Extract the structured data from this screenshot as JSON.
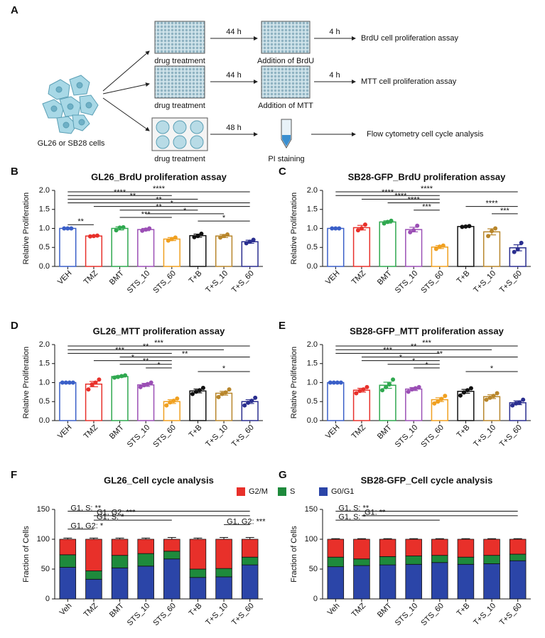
{
  "panel_a": {
    "label": "A",
    "cells_label": "GL26 or SB28 cells",
    "rows": [
      {
        "treatment": "drug treatment",
        "time1": "44 h",
        "step": "Addition of BrdU",
        "time2": "4 h",
        "assay": "BrdU cell proliferation assay"
      },
      {
        "treatment": "drug treatment",
        "time1": "44 h",
        "step": "Addition of MTT",
        "time2": "4 h",
        "assay": "MTT cell proliferation assay"
      },
      {
        "treatment": "drug treatment",
        "time1": "48 h",
        "step": "PI staining",
        "assay": "Flow cytometry cell cycle analysis"
      }
    ]
  },
  "chart_data": [
    {
      "type": "bar",
      "panel": "B",
      "title": "GL26_BrdU proliferation assay",
      "y_label": "Relative Proliferation",
      "categories": [
        "VEH",
        "TMZ",
        "BMT",
        "STS_10",
        "STS_60",
        "T+B",
        "T+S_10",
        "T+S_60"
      ],
      "colors": [
        "#3a5fc8",
        "#e8302a",
        "#2fa84f",
        "#9b4fb5",
        "#f0a020",
        "#111111",
        "#b8862b",
        "#2a2e8f"
      ],
      "values": [
        1.0,
        0.8,
        1.0,
        0.97,
        0.72,
        0.81,
        0.8,
        0.65
      ],
      "errors": [
        0.01,
        0.01,
        0.04,
        0.03,
        0.04,
        0.04,
        0.04,
        0.04
      ],
      "points": [
        [
          1.0,
          1.0,
          1.0
        ],
        [
          0.79,
          0.8,
          0.81
        ],
        [
          0.95,
          1.02,
          1.03
        ],
        [
          0.94,
          0.97,
          1.0
        ],
        [
          0.68,
          0.72,
          0.76
        ],
        [
          0.77,
          0.8,
          0.86
        ],
        [
          0.76,
          0.8,
          0.84
        ],
        [
          0.61,
          0.65,
          0.7
        ]
      ],
      "ylim": [
        0,
        2
      ],
      "yticks": [
        {
          "value": 0,
          "label": "0.0"
        },
        0.5,
        {
          "value": 1,
          "label": "1.0"
        },
        1.5,
        {
          "value": 2,
          "label": "2.0"
        }
      ],
      "significance": [
        {
          "from": 0,
          "to": 7,
          "label": "****"
        },
        {
          "from": 0,
          "to": 4,
          "label": "****"
        },
        {
          "from": 0,
          "to": 5,
          "label": "**"
        },
        {
          "from": 0,
          "to": 7,
          "label": "**"
        },
        {
          "from": 1,
          "to": 7,
          "label": "*"
        },
        {
          "from": 2,
          "to": 5,
          "label": "**"
        },
        {
          "from": 3,
          "to": 6,
          "label": "*"
        },
        {
          "from": 2,
          "to": 4,
          "label": "***"
        },
        {
          "from": 5,
          "to": 7,
          "label": "*"
        },
        {
          "from": 0,
          "to": 1,
          "label": "**"
        }
      ]
    },
    {
      "type": "bar",
      "panel": "C",
      "title": "SB28-GFP_BrdU proliferation assay",
      "y_label": "Relative Proliferation",
      "categories": [
        "VEH",
        "TMZ",
        "BMT",
        "STS_10",
        "STS_60",
        "T+B",
        "T+S_10",
        "T+S_60"
      ],
      "colors": [
        "#3a5fc8",
        "#e8302a",
        "#2fa84f",
        "#9b4fb5",
        "#f0a020",
        "#111111",
        "#b8862b",
        "#2a2e8f"
      ],
      "values": [
        1.0,
        1.02,
        1.17,
        0.97,
        0.51,
        1.05,
        0.91,
        0.49
      ],
      "errors": [
        0.005,
        0.06,
        0.03,
        0.06,
        0.04,
        0.01,
        0.08,
        0.08
      ],
      "points": [
        [
          1.0,
          1.0,
          1.0
        ],
        [
          0.95,
          1.0,
          1.1
        ],
        [
          1.13,
          1.17,
          1.2
        ],
        [
          0.9,
          0.95,
          1.07
        ],
        [
          0.46,
          0.52,
          0.55
        ],
        [
          1.04,
          1.05,
          1.06
        ],
        [
          0.8,
          0.93,
          1.0
        ],
        [
          0.38,
          0.45,
          0.62
        ]
      ],
      "ylim": [
        0,
        2
      ],
      "yticks": [
        {
          "value": 0,
          "label": "0.0"
        },
        0.5,
        {
          "value": 1,
          "label": "1.0"
        },
        1.5,
        {
          "value": 2,
          "label": "2.0"
        }
      ],
      "significance": [
        {
          "from": 0,
          "to": 7,
          "label": "****"
        },
        {
          "from": 0,
          "to": 4,
          "label": "****"
        },
        {
          "from": 1,
          "to": 4,
          "label": "****"
        },
        {
          "from": 2,
          "to": 4,
          "label": "****"
        },
        {
          "from": 5,
          "to": 7,
          "label": "****"
        },
        {
          "from": 3,
          "to": 4,
          "label": "***"
        },
        {
          "from": 6,
          "to": 7,
          "label": "***"
        }
      ]
    },
    {
      "type": "bar",
      "panel": "D",
      "title": "GL26_MTT proliferation assay",
      "y_label": "Relative Proliferation",
      "categories": [
        "VEH",
        "TMZ",
        "BMT",
        "STS_10",
        "STS_60",
        "T+B",
        "T+S_10",
        "T+S_60"
      ],
      "colors": [
        "#3a5fc8",
        "#e8302a",
        "#2fa84f",
        "#9b4fb5",
        "#f0a020",
        "#111111",
        "#b8862b",
        "#2a2e8f"
      ],
      "values": [
        1.0,
        0.96,
        1.16,
        0.94,
        0.5,
        0.78,
        0.72,
        0.5
      ],
      "errors": [
        0.005,
        0.07,
        0.02,
        0.04,
        0.05,
        0.05,
        0.05,
        0.05
      ],
      "points": [
        [
          1.0,
          1.0,
          1.0,
          1.0
        ],
        [
          0.82,
          0.95,
          1.0,
          1.08
        ],
        [
          1.13,
          1.15,
          1.17,
          1.19
        ],
        [
          0.88,
          0.93,
          0.96,
          1.0
        ],
        [
          0.4,
          0.48,
          0.52,
          0.58
        ],
        [
          0.7,
          0.76,
          0.8,
          0.86
        ],
        [
          0.62,
          0.7,
          0.74,
          0.82
        ],
        [
          0.4,
          0.47,
          0.52,
          0.6
        ]
      ],
      "ylim": [
        0,
        2
      ],
      "yticks": [
        {
          "value": 0,
          "label": "0.0"
        },
        0.5,
        {
          "value": 1,
          "label": "1.0"
        },
        1.5,
        {
          "value": 2,
          "label": "2.0"
        }
      ],
      "significance": [
        {
          "from": 0,
          "to": 7,
          "label": "***"
        },
        {
          "from": 0,
          "to": 6,
          "label": "**"
        },
        {
          "from": 0,
          "to": 4,
          "label": "***"
        },
        {
          "from": 2,
          "to": 7,
          "label": "**"
        },
        {
          "from": 1,
          "to": 4,
          "label": "*"
        },
        {
          "from": 2,
          "to": 4,
          "label": "**"
        },
        {
          "from": 3,
          "to": 4,
          "label": "*"
        },
        {
          "from": 5,
          "to": 7,
          "label": "*"
        }
      ]
    },
    {
      "type": "bar",
      "panel": "E",
      "title": "SB28-GFP_MTT proliferation assay",
      "y_label": "Relative Proliferation",
      "categories": [
        "VEH",
        "TMZ",
        "BMT",
        "STS_10",
        "STS_60",
        "T+B",
        "T+S_10",
        "T+S_60"
      ],
      "colors": [
        "#3a5fc8",
        "#e8302a",
        "#2fa84f",
        "#9b4fb5",
        "#f0a020",
        "#111111",
        "#b8862b",
        "#2a2e8f"
      ],
      "values": [
        1.0,
        0.8,
        0.93,
        0.83,
        0.55,
        0.77,
        0.63,
        0.47
      ],
      "errors": [
        0.005,
        0.05,
        0.08,
        0.04,
        0.05,
        0.05,
        0.05,
        0.05
      ],
      "points": [
        [
          1.0,
          1.0,
          1.0,
          1.0
        ],
        [
          0.72,
          0.78,
          0.82,
          0.88
        ],
        [
          0.8,
          0.88,
          0.95,
          1.08
        ],
        [
          0.76,
          0.82,
          0.85,
          0.88
        ],
        [
          0.45,
          0.5,
          0.57,
          0.65
        ],
        [
          0.66,
          0.74,
          0.8,
          0.85
        ],
        [
          0.55,
          0.6,
          0.65,
          0.72
        ],
        [
          0.4,
          0.45,
          0.48,
          0.55
        ]
      ],
      "ylim": [
        0,
        2
      ],
      "yticks": [
        {
          "value": 0,
          "label": "0.0"
        },
        0.5,
        {
          "value": 1,
          "label": "1.0"
        },
        1.5,
        {
          "value": 2,
          "label": "2.0"
        }
      ],
      "significance": [
        {
          "from": 0,
          "to": 7,
          "label": "***"
        },
        {
          "from": 0,
          "to": 6,
          "label": "**"
        },
        {
          "from": 0,
          "to": 4,
          "label": "***"
        },
        {
          "from": 1,
          "to": 7,
          "label": "**"
        },
        {
          "from": 1,
          "to": 4,
          "label": "*"
        },
        {
          "from": 2,
          "to": 4,
          "label": "*"
        },
        {
          "from": 3,
          "to": 4,
          "label": "*"
        },
        {
          "from": 5,
          "to": 7,
          "label": "*"
        }
      ]
    },
    {
      "type": "stacked_bar",
      "panel": "F",
      "title": "GL26_Cell cycle analysis",
      "y_label": "Fraction of Cells",
      "categories": [
        "Veh",
        "TMZ",
        "BMT",
        "STS_10",
        "STS_60",
        "T+B",
        "T+S_10",
        "T+S_60"
      ],
      "series": [
        {
          "name": "G0/G1",
          "color": "#2b45a8",
          "values": [
            53,
            33,
            52,
            55,
            67,
            36,
            37,
            57
          ]
        },
        {
          "name": "S",
          "color": "#1e8a3c",
          "values": [
            21,
            14,
            21,
            21,
            13,
            14,
            14,
            13
          ]
        },
        {
          "name": "G2/M",
          "color": "#e8302a",
          "values": [
            26,
            53,
            27,
            24,
            20,
            50,
            49,
            30
          ],
          "errors": [
            2,
            2,
            2,
            2,
            3,
            2,
            3,
            3
          ]
        }
      ],
      "ylim": [
        0,
        150
      ],
      "yticks": [
        0,
        50,
        100,
        150
      ],
      "significance": [
        {
          "from": 0,
          "to": 7,
          "label": "G1, S: **"
        },
        {
          "from": 1,
          "to": 7,
          "label": "G1, G2: ***"
        },
        {
          "from": 1,
          "to": 4,
          "label": "G1, S: *"
        },
        {
          "from": 6,
          "to": 7,
          "label": "G1, G2: ***"
        },
        {
          "from": 0,
          "to": 1,
          "label": "G1, G2: *"
        }
      ]
    },
    {
      "type": "stacked_bar",
      "panel": "G",
      "title": "SB28-GFP_Cell cycle analysis",
      "y_label": "Fraction of Cells",
      "categories": [
        "Veh",
        "TMZ",
        "BMT",
        "STS_10",
        "STS_60",
        "T+B",
        "T+S_10",
        "T+S_60"
      ],
      "series": [
        {
          "color": "#2b45a8",
          "values": [
            54,
            56,
            57,
            58,
            61,
            58,
            59,
            64
          ]
        },
        {
          "color": "#1e8a3c",
          "values": [
            16,
            11,
            14,
            14,
            12,
            12,
            14,
            11
          ]
        },
        {
          "color": "#e8302a",
          "values": [
            30,
            33,
            29,
            28,
            27,
            30,
            27,
            25
          ],
          "errors": [
            1,
            1,
            1,
            1,
            1,
            1,
            1,
            1
          ]
        }
      ],
      "ylim": [
        0,
        150
      ],
      "yticks": [
        0,
        50,
        100,
        150
      ],
      "significance": [
        {
          "from": 0,
          "to": 7,
          "label": "G1, S: **"
        },
        {
          "from": 1,
          "to": 7,
          "label": "G1: **"
        },
        {
          "from": 0,
          "to": 4,
          "label": "G1, S: *"
        }
      ]
    }
  ]
}
